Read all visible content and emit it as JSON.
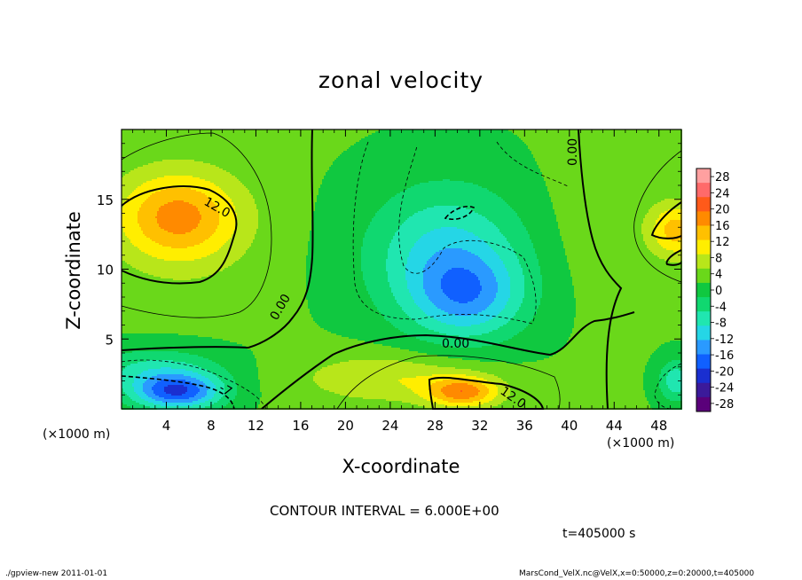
{
  "chart_data": {
    "type": "heatmap",
    "title": "zonal velocity",
    "xlabel": "X-coordinate",
    "ylabel": "Z-coordinate",
    "x_unit_label": "(×1000 m)",
    "x_ticks": [
      4,
      8,
      12,
      16,
      20,
      24,
      28,
      32,
      36,
      40,
      44,
      48
    ],
    "y_ticks": [
      5,
      10,
      15
    ],
    "xlim": [
      0,
      50
    ],
    "ylim": [
      0,
      20
    ],
    "colorbar": {
      "ticks": [
        28,
        24,
        20,
        16,
        12,
        8,
        4,
        0,
        -4,
        -8,
        -12,
        -16,
        -20,
        -24,
        -28
      ],
      "range": [
        -30,
        30
      ],
      "colors": [
        "#5a007a",
        "#3b1a9a",
        "#1a2fd0",
        "#1060ff",
        "#2a9aff",
        "#25d6e6",
        "#20e6b0",
        "#10d870",
        "#10c840",
        "#6ad81a",
        "#b8e61a",
        "#ffee00",
        "#ffc000",
        "#ff8a00",
        "#ff5a1a",
        "#ff6a6a",
        "#ffa0a0"
      ]
    },
    "contour_labels": [
      "12.0",
      "12.0",
      "0.00",
      "0.00",
      "0.00",
      "-7"
    ],
    "contour_interval_text": "CONTOUR INTERVAL = 6.000E+00",
    "time_text": "t=405000 s",
    "field_blobs": [
      {
        "x": 5,
        "z": 13.8,
        "value": 16,
        "sx": 5.5,
        "sz": 3.2
      },
      {
        "x": 6,
        "z": 12,
        "value": 4,
        "sx": 7,
        "sz": 5
      },
      {
        "x": 30.5,
        "z": 1.2,
        "value": 17,
        "sx": 3.2,
        "sz": 1.1
      },
      {
        "x": 24,
        "z": 2.2,
        "value": 9,
        "sx": 8,
        "sz": 1.8
      },
      {
        "x": 5,
        "z": 1.2,
        "value": -18,
        "sx": 4,
        "sz": 1.3
      },
      {
        "x": 3,
        "z": 2.8,
        "value": -6,
        "sx": 6,
        "sz": 1.6
      },
      {
        "x": 29,
        "z": 11,
        "value": -10,
        "sx": 7,
        "sz": 5
      },
      {
        "x": 31,
        "z": 8,
        "value": -9,
        "sx": 5,
        "sz": 3
      },
      {
        "x": 49.5,
        "z": 12.8,
        "value": 14,
        "sx": 2.5,
        "sz": 2
      },
      {
        "x": 49.5,
        "z": 2,
        "value": -8,
        "sx": 1.5,
        "sz": 1.5
      },
      {
        "x": 15,
        "z": 18,
        "value": 2,
        "sx": 4,
        "sz": 4
      },
      {
        "x": 42,
        "z": 14,
        "value": 4,
        "sx": 4,
        "sz": 6
      }
    ]
  },
  "footer": {
    "left": "./gpview-new   2011-01-01",
    "right": "MarsCond_VelX.nc@VelX,x=0:50000,z=0:20000,t=405000"
  }
}
